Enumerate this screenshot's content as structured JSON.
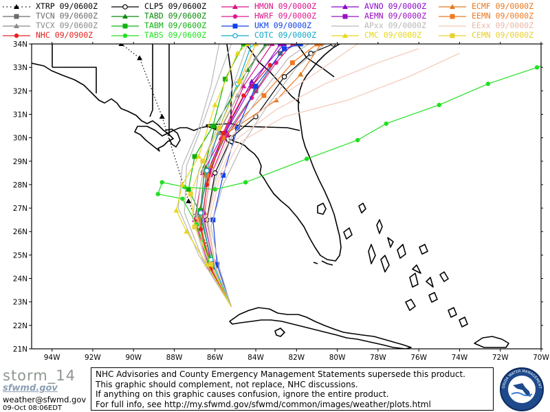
{
  "legend": [
    {
      "label": "XTRP 09/0600Z",
      "color": "#000000",
      "marker": "tri",
      "dash": "dot"
    },
    {
      "label": "CLP5 09/0600Z",
      "color": "#000000",
      "marker": "circle-open",
      "dash": "solid"
    },
    {
      "label": "HMON 09/0000Z",
      "color": "#d8108c",
      "marker": "tri",
      "dash": "solid"
    },
    {
      "label": "AVNO 09/0000Z",
      "color": "#8a08c8",
      "marker": "tri",
      "dash": "solid"
    },
    {
      "label": "ECMF 09/0000Z",
      "color": "#e8781c",
      "marker": "tri",
      "dash": "solid"
    },
    {
      "label": "TVCN 09/0600Z",
      "color": "#6a6a6a",
      "marker": "square",
      "dash": "solid"
    },
    {
      "label": "TABD 09/0600Z",
      "color": "#0a8a0a",
      "marker": "tri",
      "dash": "solid"
    },
    {
      "label": "HWRF 09/0000Z",
      "color": "#e01890",
      "marker": "circle",
      "dash": "solid"
    },
    {
      "label": "AEMN 09/0000Z",
      "color": "#9a10c0",
      "marker": "square",
      "dash": "solid"
    },
    {
      "label": "EEMN 09/0000Z",
      "color": "#f07820",
      "marker": "square",
      "dash": "solid"
    },
    {
      "label": "TVCX 09/0600Z",
      "color": "#8a8a8a",
      "marker": "tri",
      "dash": "solid"
    },
    {
      "label": "TABM 09/0600Z",
      "color": "#10b010",
      "marker": "square",
      "dash": "solid"
    },
    {
      "label": "UKM 09/0000Z",
      "color": "#1040e8",
      "marker": "square",
      "dash": "solid"
    },
    {
      "label": "APxx 09/0000Z",
      "color": "#b8b8b8",
      "marker": "none",
      "dash": "solid"
    },
    {
      "label": "EExx 09/0000Z",
      "color": "#f4c8b8",
      "marker": "none",
      "dash": "solid"
    },
    {
      "label": "NHC 09/0900Z",
      "color": "#e82020",
      "marker": "circle",
      "dash": "solid"
    },
    {
      "label": "TABS 09/0600Z",
      "color": "#20e020",
      "marker": "circle",
      "dash": "solid"
    },
    {
      "label": "COTC 09/0000Z",
      "color": "#10a8c8",
      "marker": "circle-open",
      "dash": "solid"
    },
    {
      "label": "CMC 09/0000Z",
      "color": "#e8d818",
      "marker": "tri",
      "dash": "solid"
    },
    {
      "label": "CEMN 09/0000Z",
      "color": "#e8d030",
      "marker": "square",
      "dash": "solid"
    }
  ],
  "axes": {
    "lon_ticks": [
      "94W",
      "92W",
      "90W",
      "88W",
      "86W",
      "84W",
      "82W",
      "80W",
      "78W",
      "76W",
      "74W",
      "72W",
      "70W"
    ],
    "lat_ticks": [
      "34N",
      "33N",
      "32N",
      "31N",
      "30N",
      "29N",
      "28N",
      "27N",
      "26N",
      "25N",
      "24N",
      "23N",
      "22N",
      "21N"
    ]
  },
  "tracks": [
    {
      "model": "XTRP",
      "color": "#000000",
      "dash": "dot",
      "marker": "tri",
      "points": [
        [
          -85.2,
          22.8
        ],
        [
          -86.2,
          25.0
        ],
        [
          -87.3,
          27.3
        ],
        [
          -88.6,
          30.9
        ],
        [
          -89.7,
          33.4
        ],
        [
          -90.6,
          34.0
        ]
      ]
    },
    {
      "model": "CLP5",
      "color": "#000000",
      "dash": "solid",
      "marker": "circle-open",
      "points": [
        [
          -85.2,
          22.8
        ],
        [
          -86.0,
          24.5
        ],
        [
          -86.4,
          26.5
        ],
        [
          -86.0,
          28.5
        ],
        [
          -85.2,
          30.0
        ],
        [
          -84.0,
          30.9
        ],
        [
          -82.6,
          32.6
        ],
        [
          -81.3,
          33.6
        ],
        [
          -80.2,
          34.0
        ]
      ]
    },
    {
      "model": "HMON",
      "color": "#d8108c",
      "dash": "solid",
      "marker": "tri",
      "points": [
        [
          -85.2,
          22.8
        ],
        [
          -86.3,
          24.5
        ],
        [
          -87.0,
          26.5
        ],
        [
          -86.6,
          28.5
        ],
        [
          -85.7,
          30.0
        ],
        [
          -84.6,
          32.2
        ],
        [
          -83.2,
          34.0
        ]
      ]
    },
    {
      "model": "AVNO",
      "color": "#8a08c8",
      "dash": "solid",
      "marker": "tri",
      "points": [
        [
          -85.2,
          22.8
        ],
        [
          -86.2,
          24.5
        ],
        [
          -86.8,
          26.5
        ],
        [
          -86.4,
          28.5
        ],
        [
          -85.6,
          30.1
        ],
        [
          -84.2,
          32.4
        ],
        [
          -82.6,
          34.0
        ]
      ]
    },
    {
      "model": "ECMF",
      "color": "#e8781c",
      "dash": "solid",
      "marker": "tri",
      "points": [
        [
          -85.2,
          22.8
        ],
        [
          -86.0,
          24.6
        ],
        [
          -86.5,
          26.8
        ],
        [
          -86.2,
          28.8
        ],
        [
          -85.4,
          30.2
        ],
        [
          -83.0,
          31.6
        ],
        [
          -81.8,
          32.7
        ],
        [
          -80.8,
          34.0
        ]
      ]
    },
    {
      "model": "TVCN",
      "color": "#6a6a6a",
      "dash": "solid",
      "marker": "square",
      "points": [
        [
          -85.2,
          22.8
        ],
        [
          -86.3,
          24.6
        ],
        [
          -86.8,
          26.8
        ],
        [
          -86.3,
          28.5
        ],
        [
          -85.5,
          30.1
        ],
        [
          -84.0,
          32.0
        ],
        [
          -82.8,
          33.6
        ],
        [
          -82.0,
          34.0
        ]
      ]
    },
    {
      "model": "TABD",
      "color": "#0a8a0a",
      "dash": "solid",
      "marker": "tri",
      "points": [
        [
          -85.2,
          22.8
        ],
        [
          -86.1,
          24.8
        ],
        [
          -86.7,
          27.0
        ],
        [
          -86.5,
          28.8
        ],
        [
          -86.0,
          30.5
        ],
        [
          -84.4,
          32.9
        ],
        [
          -83.5,
          34.0
        ]
      ]
    },
    {
      "model": "HWRF",
      "color": "#e01890",
      "dash": "solid",
      "marker": "circle",
      "points": [
        [
          -85.2,
          22.8
        ],
        [
          -86.2,
          24.6
        ],
        [
          -86.6,
          26.5
        ],
        [
          -86.2,
          28.4
        ],
        [
          -85.4,
          30.1
        ],
        [
          -84.2,
          31.7
        ],
        [
          -83.0,
          33.2
        ],
        [
          -82.2,
          34.0
        ]
      ]
    },
    {
      "model": "AEMN",
      "color": "#9a10c0",
      "dash": "solid",
      "marker": "square",
      "points": [
        [
          -85.2,
          22.8
        ],
        [
          -86.1,
          24.7
        ],
        [
          -86.6,
          26.8
        ],
        [
          -86.3,
          28.6
        ],
        [
          -85.5,
          30.2
        ],
        [
          -84.2,
          32.2
        ],
        [
          -82.8,
          34.0
        ]
      ]
    },
    {
      "model": "EEMN",
      "color": "#f07820",
      "dash": "solid",
      "marker": "square",
      "points": [
        [
          -85.2,
          22.8
        ],
        [
          -86.2,
          24.6
        ],
        [
          -86.8,
          26.5
        ],
        [
          -86.4,
          28.4
        ],
        [
          -85.6,
          30.0
        ],
        [
          -83.6,
          31.8
        ],
        [
          -82.2,
          33.2
        ],
        [
          -81.0,
          34.0
        ]
      ]
    },
    {
      "model": "TVCX",
      "color": "#8a8a8a",
      "dash": "solid",
      "marker": "tri",
      "points": [
        [
          -85.2,
          22.8
        ],
        [
          -86.3,
          24.6
        ],
        [
          -86.9,
          26.7
        ],
        [
          -86.6,
          28.6
        ],
        [
          -85.8,
          30.2
        ],
        [
          -84.9,
          31.8
        ],
        [
          -84.0,
          33.4
        ],
        [
          -83.4,
          34.0
        ]
      ]
    },
    {
      "model": "TABM",
      "color": "#10b010",
      "dash": "solid",
      "marker": "square",
      "points": [
        [
          -85.2,
          22.8
        ],
        [
          -86.2,
          24.9
        ],
        [
          -86.8,
          26.9
        ],
        [
          -87.3,
          27.8
        ],
        [
          -87.0,
          29.2
        ],
        [
          -86.1,
          30.5
        ],
        [
          -85.5,
          32.5
        ],
        [
          -84.6,
          34.0
        ]
      ]
    },
    {
      "model": "UKM",
      "color": "#1040e8",
      "dash": "solid",
      "marker": "square",
      "points": [
        [
          -85.2,
          22.8
        ],
        [
          -85.9,
          24.6
        ],
        [
          -86.1,
          26.5
        ],
        [
          -85.6,
          28.4
        ],
        [
          -84.9,
          30.4
        ],
        [
          -84.0,
          32.2
        ],
        [
          -82.6,
          33.8
        ],
        [
          -81.8,
          34.0
        ]
      ]
    },
    {
      "model": "APxx",
      "color": "#b8b8b8",
      "dash": "solid",
      "marker": "none",
      "points": [
        [
          -85.2,
          22.8
        ],
        [
          -86.4,
          24.6
        ],
        [
          -87.1,
          26.6
        ],
        [
          -86.8,
          28.6
        ],
        [
          -86.0,
          30.2
        ],
        [
          -85.2,
          32.0
        ],
        [
          -84.4,
          34.0
        ]
      ]
    },
    {
      "model": "APxx",
      "color": "#b8b8b8",
      "dash": "solid",
      "marker": "none",
      "points": [
        [
          -85.2,
          22.8
        ],
        [
          -86.6,
          24.8
        ],
        [
          -87.5,
          26.8
        ],
        [
          -87.4,
          28.8
        ],
        [
          -86.6,
          30.6
        ],
        [
          -85.8,
          32.6
        ],
        [
          -85.2,
          34.0
        ]
      ]
    },
    {
      "model": "APxx",
      "color": "#b8b8b8",
      "dash": "solid",
      "marker": "none",
      "points": [
        [
          -85.2,
          22.8
        ],
        [
          -86.0,
          24.6
        ],
        [
          -86.4,
          26.4
        ],
        [
          -86.0,
          28.2
        ],
        [
          -85.2,
          30.0
        ],
        [
          -83.8,
          31.8
        ],
        [
          -82.4,
          33.4
        ],
        [
          -81.4,
          34.0
        ]
      ]
    },
    {
      "model": "APxx",
      "color": "#b8b8b8",
      "dash": "solid",
      "marker": "none",
      "points": [
        [
          -85.2,
          22.8
        ],
        [
          -86.8,
          25.0
        ],
        [
          -87.8,
          27.0
        ],
        [
          -87.6,
          28.8
        ],
        [
          -86.8,
          30.4
        ],
        [
          -86.2,
          32.2
        ],
        [
          -85.8,
          34.0
        ]
      ]
    },
    {
      "model": "APxx",
      "color": "#b8b8b8",
      "dash": "solid",
      "marker": "none",
      "points": [
        [
          -85.2,
          22.8
        ],
        [
          -85.8,
          24.5
        ],
        [
          -86.2,
          26.2
        ],
        [
          -85.6,
          28.0
        ],
        [
          -84.6,
          29.8
        ],
        [
          -83.4,
          31.4
        ],
        [
          -82.0,
          33.0
        ],
        [
          -80.6,
          34.0
        ]
      ]
    },
    {
      "model": "EExx",
      "color": "#f4c8b8",
      "dash": "solid",
      "marker": "none",
      "points": [
        [
          -85.2,
          22.8
        ],
        [
          -86.0,
          24.5
        ],
        [
          -86.4,
          26.4
        ],
        [
          -85.9,
          28.2
        ],
        [
          -85.0,
          29.9
        ],
        [
          -83.0,
          31.2
        ],
        [
          -80.6,
          32.3
        ],
        [
          -78.0,
          33.2
        ],
        [
          -76.0,
          33.8
        ]
      ]
    },
    {
      "model": "EExx",
      "color": "#f4c8b8",
      "dash": "solid",
      "marker": "none",
      "points": [
        [
          -85.2,
          22.8
        ],
        [
          -86.1,
          24.6
        ],
        [
          -86.6,
          26.6
        ],
        [
          -86.2,
          28.4
        ],
        [
          -85.3,
          30.0
        ],
        [
          -83.4,
          31.4
        ],
        [
          -81.0,
          32.8
        ],
        [
          -79.0,
          34.0
        ]
      ]
    },
    {
      "model": "EExx",
      "color": "#f4c8b8",
      "dash": "solid",
      "marker": "none",
      "points": [
        [
          -85.2,
          22.8
        ],
        [
          -86.0,
          24.6
        ],
        [
          -86.3,
          26.4
        ],
        [
          -85.8,
          28.2
        ],
        [
          -84.8,
          29.8
        ],
        [
          -82.6,
          30.9
        ],
        [
          -79.5,
          31.6
        ],
        [
          -76.5,
          32.6
        ],
        [
          -74.0,
          33.6
        ]
      ]
    },
    {
      "model": "EExx",
      "color": "#f4c8b8",
      "dash": "solid",
      "marker": "none",
      "points": [
        [
          -85.2,
          22.8
        ],
        [
          -86.3,
          24.7
        ],
        [
          -86.9,
          26.7
        ],
        [
          -86.6,
          28.6
        ],
        [
          -85.8,
          30.3
        ],
        [
          -84.8,
          32.0
        ],
        [
          -84.0,
          34.0
        ]
      ]
    },
    {
      "model": "NHC",
      "color": "#e82020",
      "dash": "solid",
      "marker": "circle",
      "points": [
        [
          -85.2,
          22.8
        ],
        [
          -86.2,
          24.4
        ],
        [
          -86.7,
          26.1
        ],
        [
          -86.4,
          28.0
        ],
        [
          -85.6,
          30.2
        ],
        [
          -84.6,
          31.8
        ],
        [
          -83.3,
          33.1
        ]
      ]
    },
    {
      "model": "TABS",
      "color": "#20e020",
      "dash": "solid",
      "marker": "circle",
      "points": [
        [
          -85.2,
          22.8
        ],
        [
          -86.3,
          24.8
        ],
        [
          -86.9,
          26.3
        ],
        [
          -87.6,
          27.4
        ],
        [
          -88.8,
          27.6
        ],
        [
          -88.6,
          28.1
        ],
        [
          -87.5,
          27.9
        ],
        [
          -86.0,
          27.8
        ],
        [
          -84.5,
          28.1
        ],
        [
          -81.5,
          29.1
        ],
        [
          -79.0,
          29.9
        ],
        [
          -77.6,
          30.6
        ],
        [
          -75.0,
          31.4
        ],
        [
          -72.6,
          32.3
        ],
        [
          -70.2,
          33.0
        ],
        [
          -69.6,
          33.2
        ]
      ]
    },
    {
      "model": "COTC",
      "color": "#10a8c8",
      "dash": "solid",
      "marker": "circle-open",
      "points": [
        [
          -85.2,
          22.8
        ],
        [
          -86.2,
          24.8
        ],
        [
          -86.7,
          26.8
        ],
        [
          -86.4,
          28.6
        ],
        [
          -85.8,
          30.4
        ],
        [
          -84.9,
          32.3
        ],
        [
          -84.2,
          34.0
        ]
      ]
    },
    {
      "model": "CMC",
      "color": "#e8d818",
      "dash": "solid",
      "marker": "tri",
      "points": [
        [
          -85.2,
          22.8
        ],
        [
          -86.4,
          24.6
        ],
        [
          -87.4,
          26.0
        ],
        [
          -87.9,
          26.9
        ],
        [
          -87.6,
          28.0
        ],
        [
          -86.8,
          29.2
        ],
        [
          -86.0,
          31.4
        ],
        [
          -84.9,
          33.6
        ],
        [
          -84.4,
          34.0
        ]
      ]
    },
    {
      "model": "CEMN",
      "color": "#e8d030",
      "dash": "solid",
      "marker": "square",
      "points": [
        [
          -85.2,
          22.8
        ],
        [
          -86.2,
          24.6
        ],
        [
          -87.0,
          26.2
        ],
        [
          -87.2,
          27.6
        ],
        [
          -86.6,
          29.0
        ],
        [
          -85.8,
          30.4
        ],
        [
          -84.8,
          32.4
        ],
        [
          -84.0,
          34.0
        ]
      ]
    }
  ],
  "footer": {
    "brand_logo": "storm_14",
    "brand_sub": "sfwmd.gov",
    "email": "weather@sfwmd.gov",
    "date": "09-Oct 08:06EDT",
    "disclaimer": [
      "NHC Advisories and County Emergency Management Statements supersede this product.",
      "This graphic should complement, not replace, NHC discussions.",
      "If anything on this graphic causes confusion, ignore the entire product.",
      "For full info, see  http://my.sfwmd.gov/sfwmd/common/images/weather/plots.html"
    ],
    "seal_text": "SOUTH FLORIDA WATER MANAGEMENT DISTRICT"
  }
}
